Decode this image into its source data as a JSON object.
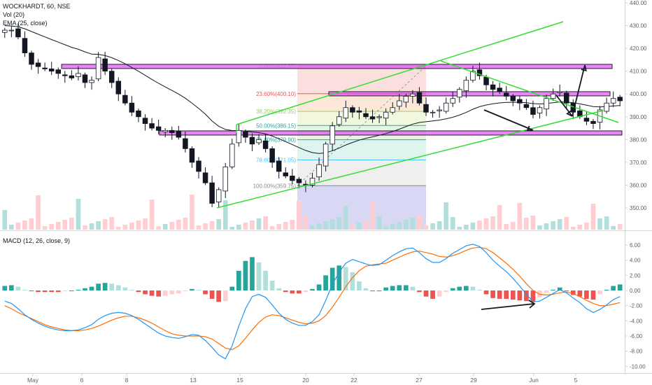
{
  "header": {
    "symbol_line": "WOCKHARDT, 60, NSE",
    "volume_line": "Vol (20)",
    "ema_line": "EMA (25, close)",
    "macd_line": "MACD (12, 26, close, 9)"
  },
  "colors": {
    "up": "#26a69a",
    "down": "#ef5350",
    "ema": "#131722",
    "magenta_zone": "#e040fb",
    "channel": "#33dd33",
    "macd_line": "#2196f3",
    "signal_line": "#ff6d00",
    "hist_up": "#26a69a",
    "hist_up_light": "#b2dfdb",
    "hist_down": "#ef5350",
    "hist_down_light": "#ffcdd2"
  },
  "chart_data": [
    {
      "type": "candlestick",
      "title": "WOCKHARDT, 60, NSE",
      "ylim": [
        342,
        440
      ],
      "y_ticks": [
        "350.00",
        "360.00",
        "370.00",
        "380.00",
        "390.00",
        "400.00",
        "410.00",
        "420.00",
        "430.00",
        "440.00"
      ],
      "x_tick_labels": [
        "May",
        "6",
        "8",
        "13",
        "15",
        "20",
        "22",
        "27",
        "29",
        "Jun",
        "5"
      ],
      "close_path": [
        428,
        428,
        425,
        418,
        413,
        412,
        411,
        410,
        409,
        408,
        407,
        409,
        405,
        406,
        416,
        410,
        405,
        400,
        396,
        392,
        390,
        387,
        385,
        384,
        384,
        383,
        381,
        376,
        370,
        366,
        361,
        352,
        358,
        368,
        378,
        384,
        381,
        378,
        380,
        376,
        370,
        366,
        364,
        362,
        361,
        360,
        363,
        369,
        378,
        386,
        390,
        394,
        392,
        392,
        390,
        389,
        390,
        392,
        394,
        397,
        399,
        400,
        396,
        392,
        392,
        393,
        396,
        398,
        402,
        406,
        410,
        408,
        404,
        402,
        401,
        399,
        397,
        396,
        394,
        391,
        394,
        398,
        400,
        401,
        396,
        392,
        390,
        388,
        387,
        393,
        396,
        398,
        397
      ],
      "ema_label": "EMA (25, close)",
      "volume_label": "Vol (20)",
      "fibonacci": [
        {
          "label": "0.00%(412.35)",
          "value": 412.35
        },
        {
          "label": "23.60%(400.10)",
          "value": 400.1
        },
        {
          "label": "38.20%(392.35)",
          "value": 392.35
        },
        {
          "label": "50.00%(386.15)",
          "value": 386.15
        },
        {
          "label": "61.80%(379.90)",
          "value": 379.9
        },
        {
          "label": "78.60%(371.05)",
          "value": 371.05
        },
        {
          "label": "100.00%(359.75)",
          "value": 359.75
        }
      ],
      "zones": [
        {
          "low": 411.5,
          "high": 413.0
        },
        {
          "low": 399.5,
          "high": 401.0
        },
        {
          "low": 382.0,
          "high": 383.8
        }
      ]
    },
    {
      "type": "line",
      "title": "MACD (12, 26, close, 9)",
      "ylim": [
        -10.5,
        7
      ],
      "y_ticks": [
        "6.00",
        "4.00",
        "2.00",
        "0.00",
        "-2.00",
        "-4.00",
        "-6.00",
        "-8.00",
        "-10.00"
      ],
      "series": [
        {
          "values": [
            -1.4,
            -1.7,
            -2.4,
            -3.2,
            -3.8,
            -4.3,
            -4.7,
            -5.0,
            -5.2,
            -5.3,
            -5.3,
            -5.2,
            -4.9,
            -4.5,
            -3.8,
            -3.3,
            -3.0,
            -2.9,
            -3.0,
            -3.3,
            -3.8,
            -4.4,
            -5.0,
            -5.6,
            -6.0,
            -6.2,
            -6.3,
            -6.1,
            -5.8,
            -5.9,
            -6.6,
            -7.5,
            -8.5,
            -9.0,
            -7.3,
            -4.7,
            -2.4,
            -0.8,
            -0.5,
            -0.9,
            -1.9,
            -3.0,
            -3.8,
            -4.3,
            -4.6,
            -4.6,
            -4.1,
            -3.2,
            -1.3,
            0.8,
            2.4,
            3.6,
            4.1,
            3.8,
            3.5,
            3.3,
            3.4,
            4.0,
            4.6,
            5.1,
            5.5,
            5.6,
            5.0,
            4.2,
            3.7,
            3.7,
            4.2,
            4.9,
            5.4,
            5.9,
            6.1,
            5.8,
            5.0,
            4.0,
            3.2,
            2.5,
            1.6,
            0.6,
            -0.5,
            -1.5,
            -1.4,
            -0.9,
            -0.4,
            0.1,
            -0.3,
            -1.0,
            -1.6,
            -2.4,
            -2.9,
            -2.5,
            -1.9,
            -1.2,
            -0.8
          ]
        },
        {
          "values": [
            -2.0,
            -2.4,
            -2.9,
            -3.3,
            -3.7,
            -4.1,
            -4.5,
            -4.8,
            -5.0,
            -5.2,
            -5.3,
            -5.3,
            -5.2,
            -5.0,
            -4.7,
            -4.3,
            -3.9,
            -3.6,
            -3.4,
            -3.4,
            -3.6,
            -3.9,
            -4.3,
            -4.8,
            -5.3,
            -5.7,
            -5.9,
            -6.0,
            -6.0,
            -6.0,
            -6.1,
            -6.4,
            -7.0,
            -7.6,
            -7.8,
            -7.3,
            -6.3,
            -5.2,
            -4.2,
            -3.5,
            -3.2,
            -3.3,
            -3.6,
            -3.9,
            -4.2,
            -4.4,
            -4.3,
            -4.0,
            -3.3,
            -2.2,
            -0.9,
            0.5,
            1.7,
            2.6,
            3.2,
            3.4,
            3.5,
            3.6,
            4.0,
            4.4,
            4.8,
            5.1,
            5.2,
            5.0,
            4.8,
            4.5,
            4.4,
            4.6,
            4.9,
            5.3,
            5.6,
            5.7,
            5.5,
            5.0,
            4.3,
            3.6,
            2.8,
            1.9,
            0.9,
            0.0,
            -0.5,
            -0.6,
            -0.5,
            -0.3,
            -0.2,
            -0.4,
            -0.8,
            -1.3,
            -1.7,
            -2.0,
            -2.0,
            -1.8,
            -1.6
          ]
        }
      ],
      "histogram": [
        0.6,
        0.7,
        0.5,
        0.1,
        -0.1,
        -0.2,
        -0.2,
        -0.2,
        -0.2,
        -0.1,
        0.0,
        0.1,
        0.3,
        0.5,
        0.9,
        1.0,
        0.9,
        0.7,
        0.4,
        0.1,
        -0.2,
        -0.5,
        -0.7,
        -0.8,
        -0.7,
        -0.5,
        -0.4,
        -0.1,
        0.2,
        0.1,
        -0.5,
        -1.1,
        -1.5,
        -1.4,
        0.5,
        2.6,
        3.9,
        4.4,
        3.7,
        2.6,
        1.3,
        0.3,
        -0.2,
        -0.4,
        -0.4,
        -0.2,
        0.2,
        0.8,
        2.0,
        3.0,
        3.3,
        3.1,
        2.4,
        1.2,
        0.3,
        -0.1,
        -0.1,
        0.4,
        0.6,
        0.7,
        0.7,
        0.5,
        -0.2,
        -0.8,
        -1.1,
        -0.8,
        -0.2,
        0.3,
        0.5,
        0.6,
        0.5,
        0.1,
        -0.5,
        -1.0,
        -1.1,
        -1.1,
        -1.2,
        -1.3,
        -1.4,
        -1.5,
        -0.9,
        -0.3,
        0.1,
        0.4,
        -0.1,
        -0.6,
        -0.8,
        -1.1,
        -1.2,
        -0.5,
        0.1,
        0.6,
        0.8
      ]
    }
  ]
}
